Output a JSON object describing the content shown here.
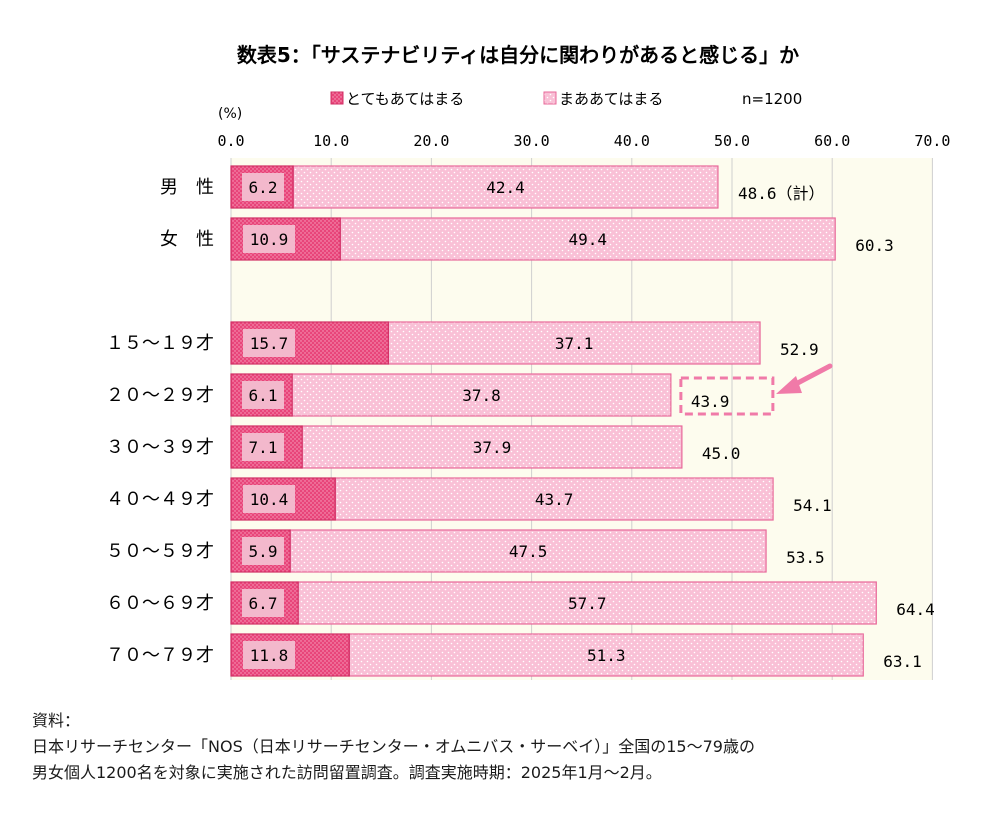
{
  "chart_data": {
    "type": "bar",
    "orientation": "horizontal",
    "stacked": true,
    "title": "数表5：「サステナビリティは自分に関わりがあると感じる」か",
    "unit_label": "(%)",
    "sample_note": "n=1200",
    "xlim": [
      0,
      70
    ],
    "xticks": [
      "0.0",
      "10.0",
      "20.0",
      "30.0",
      "40.0",
      "50.0",
      "60.0",
      "70.0"
    ],
    "categories": [
      "男　性",
      "女　性",
      "１５～１９才",
      "２０～２９才",
      "３０～３９才",
      "４０～４９才",
      "５０～５９才",
      "６０～６９才",
      "７０～７９才"
    ],
    "series": [
      {
        "name": "とてもあてはまる",
        "values": [
          6.2,
          10.9,
          15.7,
          6.1,
          7.1,
          10.4,
          5.9,
          6.7,
          11.8
        ]
      },
      {
        "name": "まああてはまる",
        "values": [
          42.4,
          49.4,
          37.1,
          37.8,
          37.9,
          43.7,
          47.5,
          57.7,
          51.3
        ]
      }
    ],
    "totals": [
      "48.6（計）",
      "60.3",
      "52.9",
      "43.9",
      "45.0",
      "54.1",
      "53.5",
      "64.4",
      "63.1"
    ],
    "highlight_total_index": 3,
    "grid": "vertical",
    "legend_position": "top",
    "colors": {
      "strong": "#e8457a",
      "strong_label_bg": "#f3b8cc",
      "mild": "#f9c0d6",
      "mild_border": "#e8699a",
      "plot_bg": "#fdfcee",
      "grid": "#cfcfcf",
      "highlight": "#f07aa8"
    }
  },
  "source": {
    "label": "資料：",
    "line1": "日本リサーチセンター「NOS（日本リサーチセンター・オムニバス・サーベイ）」全国の15～79歳の",
    "line2": "男女個人1200名を対象に実施された訪問留置調査。調査実施時期：2025年1月～2月。"
  }
}
